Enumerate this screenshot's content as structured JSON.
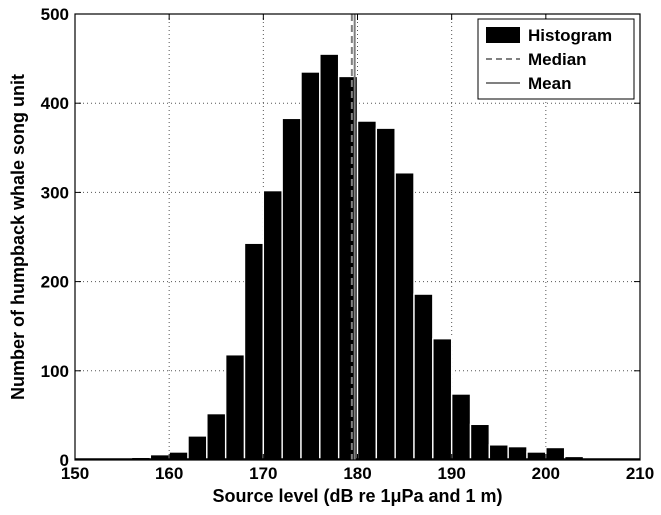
{
  "chart_data": {
    "type": "bar",
    "title": "",
    "xlabel": "Source level (dB re 1μPa and 1 m)",
    "ylabel": "Number of humpback whale song unit",
    "xlim": [
      150,
      210
    ],
    "ylim": [
      0,
      500
    ],
    "xticks": [
      150,
      160,
      170,
      180,
      190,
      200,
      210
    ],
    "yticks": [
      0,
      100,
      200,
      300,
      400,
      500
    ],
    "grid": true,
    "legend_position": "top-right",
    "bin_width": 2,
    "bins": [
      {
        "x": 157,
        "value": 3
      },
      {
        "x": 159,
        "value": 6
      },
      {
        "x": 161,
        "value": 9
      },
      {
        "x": 163,
        "value": 27
      },
      {
        "x": 165,
        "value": 52
      },
      {
        "x": 167,
        "value": 118
      },
      {
        "x": 169,
        "value": 243
      },
      {
        "x": 171,
        "value": 302
      },
      {
        "x": 173,
        "value": 383
      },
      {
        "x": 175,
        "value": 435
      },
      {
        "x": 177,
        "value": 455
      },
      {
        "x": 179,
        "value": 430
      },
      {
        "x": 181,
        "value": 380
      },
      {
        "x": 183,
        "value": 372
      },
      {
        "x": 185,
        "value": 322
      },
      {
        "x": 187,
        "value": 186
      },
      {
        "x": 189,
        "value": 136
      },
      {
        "x": 191,
        "value": 74
      },
      {
        "x": 193,
        "value": 40
      },
      {
        "x": 195,
        "value": 17
      },
      {
        "x": 197,
        "value": 15
      },
      {
        "x": 199,
        "value": 9
      },
      {
        "x": 201,
        "value": 14
      },
      {
        "x": 203,
        "value": 4
      }
    ],
    "series": [
      {
        "name": "Histogram",
        "type": "bar",
        "color": "#000000"
      },
      {
        "name": "Median",
        "type": "vline",
        "value": 179.4,
        "style": "dashed",
        "color": "#808080"
      },
      {
        "name": "Mean",
        "type": "vline",
        "value": 179.7,
        "style": "solid",
        "color": "#808080"
      }
    ]
  }
}
